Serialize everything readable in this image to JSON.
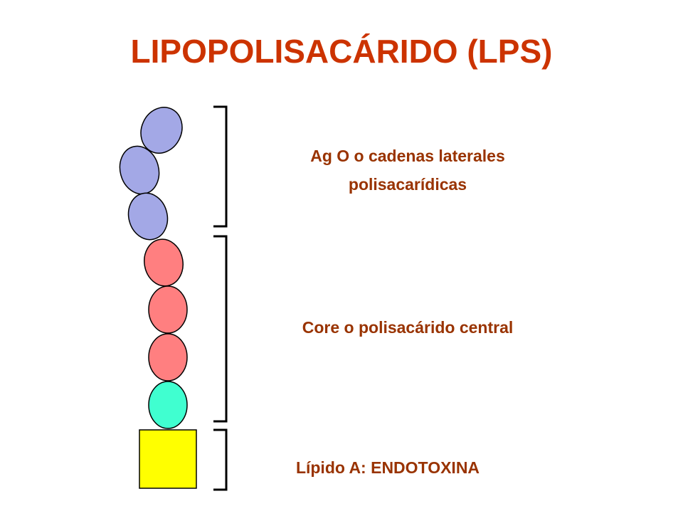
{
  "title": "LIPOPOLISACÁRIDO (LPS)",
  "sections": [
    {
      "lines": [
        "Ag O o cadenas laterales",
        "polisacarídicas"
      ]
    },
    {
      "lines": [
        "Core o polisacárido central"
      ]
    },
    {
      "lines": [
        "Lípido A: ENDOTOXINA"
      ]
    }
  ]
}
